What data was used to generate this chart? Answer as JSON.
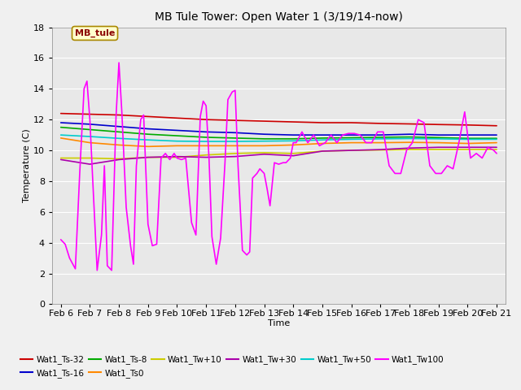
{
  "title": "MB Tule Tower: Open Water 1 (3/19/14-now)",
  "xlabel": "Time",
  "ylabel": "Temperature (C)",
  "ylim": [
    0,
    18
  ],
  "xlim": [
    -0.3,
    15.3
  ],
  "series": {
    "Wat1_Ts-32": {
      "color": "#cc0000",
      "linewidth": 1.2,
      "data_x": [
        0,
        1,
        2,
        3,
        4,
        5,
        6,
        7,
        8,
        9,
        10,
        11,
        12,
        13,
        14,
        15
      ],
      "data_y": [
        12.4,
        12.35,
        12.3,
        12.2,
        12.1,
        12.0,
        11.95,
        11.9,
        11.85,
        11.8,
        11.8,
        11.75,
        11.72,
        11.68,
        11.65,
        11.6
      ]
    },
    "Wat1_Ts-16": {
      "color": "#0000cc",
      "linewidth": 1.2,
      "data_x": [
        0,
        1,
        2,
        3,
        4,
        5,
        6,
        7,
        8,
        9,
        10,
        11,
        12,
        13,
        14,
        15
      ],
      "data_y": [
        11.8,
        11.7,
        11.55,
        11.4,
        11.3,
        11.2,
        11.15,
        11.05,
        11.0,
        11.0,
        11.0,
        11.0,
        11.05,
        11.0,
        11.0,
        11.0
      ]
    },
    "Wat1_Ts-8": {
      "color": "#00aa00",
      "linewidth": 1.2,
      "data_x": [
        0,
        1,
        2,
        3,
        4,
        5,
        6,
        7,
        8,
        9,
        10,
        11,
        12,
        13,
        14,
        15
      ],
      "data_y": [
        11.5,
        11.35,
        11.2,
        11.05,
        10.95,
        10.85,
        10.8,
        10.75,
        10.75,
        10.8,
        10.82,
        10.85,
        10.87,
        10.83,
        10.78,
        10.78
      ]
    },
    "Wat1_Ts0": {
      "color": "#ff8800",
      "linewidth": 1.2,
      "data_x": [
        0,
        1,
        2,
        3,
        4,
        5,
        6,
        7,
        8,
        9,
        10,
        11,
        12,
        13,
        14,
        15
      ],
      "data_y": [
        10.8,
        10.5,
        10.35,
        10.25,
        10.3,
        10.3,
        10.3,
        10.3,
        10.35,
        10.45,
        10.5,
        10.5,
        10.52,
        10.5,
        10.45,
        10.5
      ]
    },
    "Wat1_Tw+10": {
      "color": "#cccc00",
      "linewidth": 1.2,
      "data_x": [
        0,
        1,
        2,
        3,
        4,
        5,
        6,
        7,
        8,
        9,
        10,
        11,
        12,
        13,
        14,
        15
      ],
      "data_y": [
        9.5,
        9.5,
        9.45,
        9.55,
        9.55,
        9.7,
        9.8,
        9.85,
        9.8,
        9.95,
        10.0,
        10.02,
        10.05,
        10.05,
        10.05,
        10.05
      ]
    },
    "Wat1_Tw+30": {
      "color": "#aa00aa",
      "linewidth": 1.2,
      "data_x": [
        0,
        1,
        2,
        3,
        4,
        5,
        6,
        7,
        8,
        9,
        10,
        11,
        12,
        13,
        14,
        15
      ],
      "data_y": [
        9.4,
        9.1,
        9.4,
        9.55,
        9.6,
        9.55,
        9.6,
        9.75,
        9.65,
        9.95,
        10.0,
        10.05,
        10.15,
        10.2,
        10.2,
        10.2
      ]
    },
    "Wat1_Tw+50": {
      "color": "#00cccc",
      "linewidth": 1.2,
      "data_x": [
        0,
        1,
        2,
        3,
        4,
        5,
        6,
        7,
        8,
        9,
        10,
        11,
        12,
        13,
        14,
        15
      ],
      "data_y": [
        11.0,
        10.9,
        10.78,
        10.68,
        10.6,
        10.58,
        10.58,
        10.6,
        10.62,
        10.68,
        10.72,
        10.75,
        10.77,
        10.75,
        10.72,
        10.72
      ]
    },
    "Wat1_Tw100": {
      "color": "#ff00ff",
      "linewidth": 1.2,
      "data_x": [
        0.0,
        0.15,
        0.3,
        0.5,
        0.65,
        0.8,
        0.9,
        1.0,
        1.1,
        1.25,
        1.4,
        1.5,
        1.6,
        1.75,
        1.9,
        2.0,
        2.1,
        2.25,
        2.4,
        2.5,
        2.6,
        2.75,
        2.85,
        3.0,
        3.15,
        3.3,
        3.45,
        3.6,
        3.75,
        3.9,
        4.0,
        4.15,
        4.3,
        4.5,
        4.65,
        4.8,
        4.9,
        5.0,
        5.1,
        5.2,
        5.35,
        5.5,
        5.65,
        5.75,
        5.9,
        6.0,
        6.1,
        6.25,
        6.4,
        6.5,
        6.6,
        6.75,
        6.85,
        7.0,
        7.1,
        7.2,
        7.35,
        7.5,
        7.65,
        7.75,
        7.9,
        8.0,
        8.1,
        8.3,
        8.5,
        8.7,
        8.9,
        9.1,
        9.3,
        9.5,
        9.7,
        9.9,
        10.1,
        10.3,
        10.5,
        10.7,
        10.9,
        11.1,
        11.3,
        11.5,
        11.7,
        11.9,
        12.1,
        12.3,
        12.5,
        12.7,
        12.9,
        13.1,
        13.3,
        13.5,
        13.7,
        13.9,
        14.1,
        14.3,
        14.5,
        14.7,
        14.9,
        15.0
      ],
      "data_y": [
        4.2,
        3.9,
        3.0,
        2.3,
        8.5,
        14.0,
        14.5,
        12.0,
        8.0,
        2.2,
        4.5,
        9.0,
        2.5,
        2.2,
        12.2,
        15.7,
        12.5,
        6.3,
        3.8,
        2.6,
        9.0,
        12.0,
        12.3,
        5.2,
        3.8,
        3.9,
        9.5,
        9.8,
        9.4,
        9.8,
        9.5,
        9.4,
        9.5,
        5.3,
        4.5,
        12.2,
        13.2,
        12.9,
        9.5,
        4.4,
        2.6,
        4.3,
        9.2,
        13.3,
        13.8,
        13.9,
        9.0,
        3.5,
        3.2,
        3.4,
        8.2,
        8.5,
        8.8,
        8.5,
        7.5,
        6.4,
        9.2,
        9.1,
        9.2,
        9.2,
        9.5,
        10.5,
        10.5,
        11.2,
        10.5,
        11.0,
        10.3,
        10.5,
        11.0,
        10.5,
        11.0,
        11.1,
        11.1,
        11.0,
        10.5,
        10.5,
        11.2,
        11.2,
        9.0,
        8.5,
        8.5,
        10.0,
        10.5,
        12.0,
        11.8,
        9.0,
        8.5,
        8.5,
        9.0,
        8.8,
        10.5,
        12.5,
        9.5,
        9.8,
        9.5,
        10.2,
        10.0,
        9.8
      ]
    }
  },
  "xticks_pos": [
    0,
    1,
    2,
    3,
    4,
    5,
    6,
    7,
    8,
    9,
    10,
    11,
    12,
    13,
    14,
    15
  ],
  "xticks_labels": [
    "Feb 6",
    "Feb 7",
    "Feb 8",
    "Feb 9",
    "Feb 10",
    "Feb 11",
    "Feb 12",
    "Feb 13",
    "Feb 14",
    "Feb 15",
    "Feb 16",
    "Feb 17",
    "Feb 18",
    "Feb 19",
    "Feb 20",
    "Feb 21"
  ],
  "yticks": [
    0,
    2,
    4,
    6,
    8,
    10,
    12,
    14,
    16,
    18
  ],
  "mb_tule_label": "MB_tule",
  "legend_row1": [
    "Wat1_Ts-32",
    "Wat1_Ts-16",
    "Wat1_Ts-8",
    "Wat1_Ts0",
    "Wat1_Tw+10",
    "Wat1_Tw+30"
  ],
  "legend_row2": [
    "Wat1_Tw+50",
    "Wat1_Tw100"
  ]
}
